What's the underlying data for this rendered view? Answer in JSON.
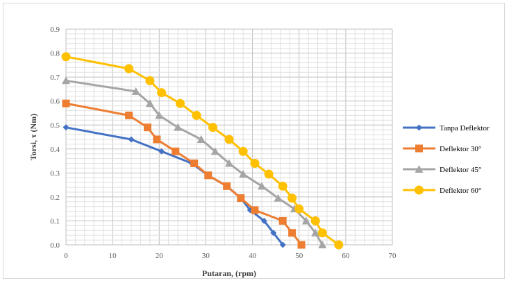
{
  "chart_data": {
    "type": "line",
    "title": "",
    "xlabel": "Putaran, (rpm)",
    "ylabel": "Torsi, τ (Nm)",
    "xlim": [
      0,
      70
    ],
    "ylim": [
      0,
      0.9
    ],
    "x_ticks": [
      "0",
      "10",
      "20",
      "30",
      "40",
      "50",
      "60",
      "70"
    ],
    "y_ticks": [
      "0.0",
      "0.1",
      "0.2",
      "0.3",
      "0.4",
      "0.5",
      "0.6",
      "0.7",
      "0.8",
      "0.9"
    ],
    "grid": "on",
    "legend_position": "right",
    "series": [
      {
        "name": "Tanpa Deflektor",
        "color": "#4472c4",
        "marker": "diamond",
        "points": [
          [
            0,
            0.49
          ],
          [
            14,
            0.44
          ],
          [
            20.5,
            0.39
          ],
          [
            27,
            0.34
          ],
          [
            30.5,
            0.29
          ],
          [
            34.5,
            0.245
          ],
          [
            37.5,
            0.195
          ],
          [
            39.5,
            0.145
          ],
          [
            42.5,
            0.1
          ],
          [
            44.5,
            0.05
          ],
          [
            46.5,
            0
          ]
        ]
      },
      {
        "name": "Deflektor 30°",
        "color": "#ed7d31",
        "marker": "square",
        "points": [
          [
            0,
            0.59
          ],
          [
            13.5,
            0.54
          ],
          [
            17.5,
            0.49
          ],
          [
            19.5,
            0.44
          ],
          [
            23.5,
            0.39
          ],
          [
            27.5,
            0.34
          ],
          [
            30.5,
            0.29
          ],
          [
            34.5,
            0.245
          ],
          [
            37.5,
            0.195
          ],
          [
            40.5,
            0.145
          ],
          [
            46.5,
            0.1
          ],
          [
            48.5,
            0.05
          ],
          [
            50.5,
            0
          ]
        ]
      },
      {
        "name": "Deflektor 45°",
        "color": "#a5a5a5",
        "marker": "triangle",
        "points": [
          [
            0,
            0.685
          ],
          [
            15,
            0.64
          ],
          [
            18,
            0.59
          ],
          [
            20,
            0.54
          ],
          [
            24,
            0.49
          ],
          [
            29,
            0.44
          ],
          [
            32,
            0.39
          ],
          [
            35,
            0.34
          ],
          [
            38,
            0.295
          ],
          [
            42,
            0.245
          ],
          [
            45.5,
            0.195
          ],
          [
            49,
            0.15
          ],
          [
            51.5,
            0.1
          ],
          [
            53.5,
            0.05
          ],
          [
            55,
            0
          ]
        ]
      },
      {
        "name": "Deflektor 60°",
        "color": "#ffc000",
        "marker": "circle",
        "points": [
          [
            0,
            0.785
          ],
          [
            13.5,
            0.735
          ],
          [
            18,
            0.685
          ],
          [
            20.5,
            0.635
          ],
          [
            24.5,
            0.59
          ],
          [
            28,
            0.54
          ],
          [
            31.5,
            0.49
          ],
          [
            35,
            0.44
          ],
          [
            38,
            0.39
          ],
          [
            40.5,
            0.34
          ],
          [
            43.5,
            0.295
          ],
          [
            46.5,
            0.245
          ],
          [
            48.5,
            0.195
          ],
          [
            50,
            0.15
          ],
          [
            53.5,
            0.1
          ],
          [
            55,
            0.05
          ],
          [
            58.5,
            0
          ]
        ]
      }
    ]
  }
}
